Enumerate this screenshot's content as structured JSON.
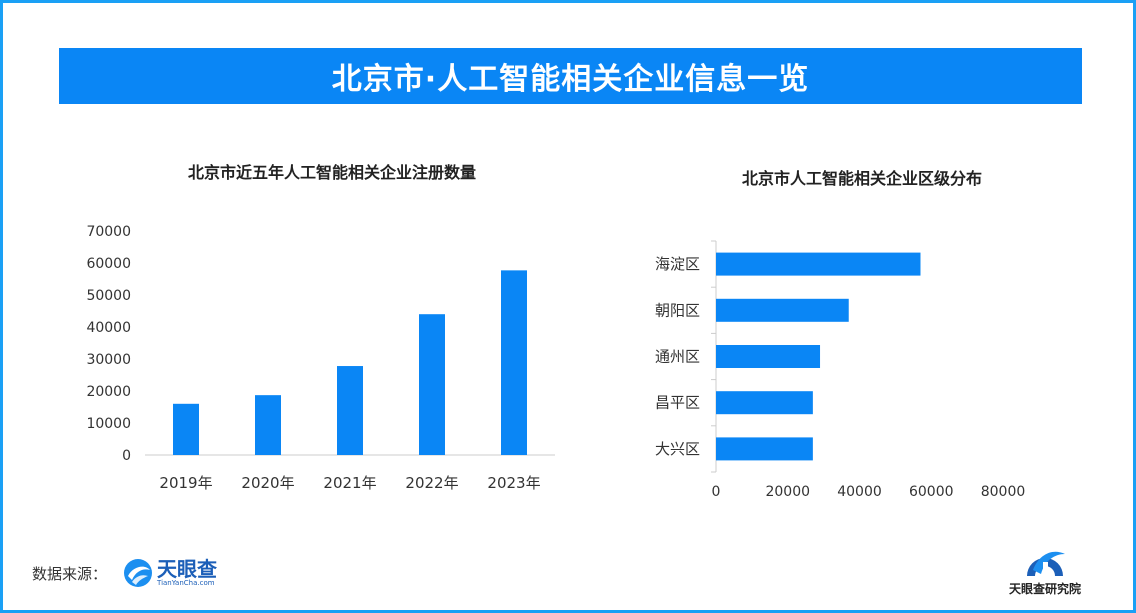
{
  "banner": {
    "title": "北京市·人工智能相关企业信息一览"
  },
  "colors": {
    "accent": "#0a86f5",
    "bar": "#0a86f5",
    "frame": "#1aa0f5"
  },
  "chart_data": [
    {
      "type": "bar",
      "title": "北京市近五年人工智能相关企业注册数量",
      "categories": [
        "2019年",
        "2020年",
        "2021年",
        "2022年",
        "2023年"
      ],
      "values": [
        16000,
        18700,
        27800,
        44000,
        57700
      ],
      "ylim": [
        0,
        70000
      ],
      "yticks": [
        "0",
        "10000",
        "20000",
        "30000",
        "40000",
        "50000",
        "60000",
        "70000"
      ],
      "grid": false
    },
    {
      "type": "bar",
      "orientation": "horizontal",
      "title": "北京市人工智能相关企业区级分布",
      "categories": [
        "海淀区",
        "朝阳区",
        "通州区",
        "昌平区",
        "大兴区"
      ],
      "values": [
        57000,
        37000,
        29000,
        27000,
        27000
      ],
      "xlim": [
        0,
        80000
      ],
      "xticks": [
        "0",
        "20000",
        "40000",
        "60000",
        "80000"
      ],
      "grid": false
    }
  ],
  "source": {
    "label": "数据来源：",
    "brand_name": "天眼查",
    "brand_sub": "TianYanCha.com"
  },
  "institute": {
    "name": "天眼查研究院"
  }
}
